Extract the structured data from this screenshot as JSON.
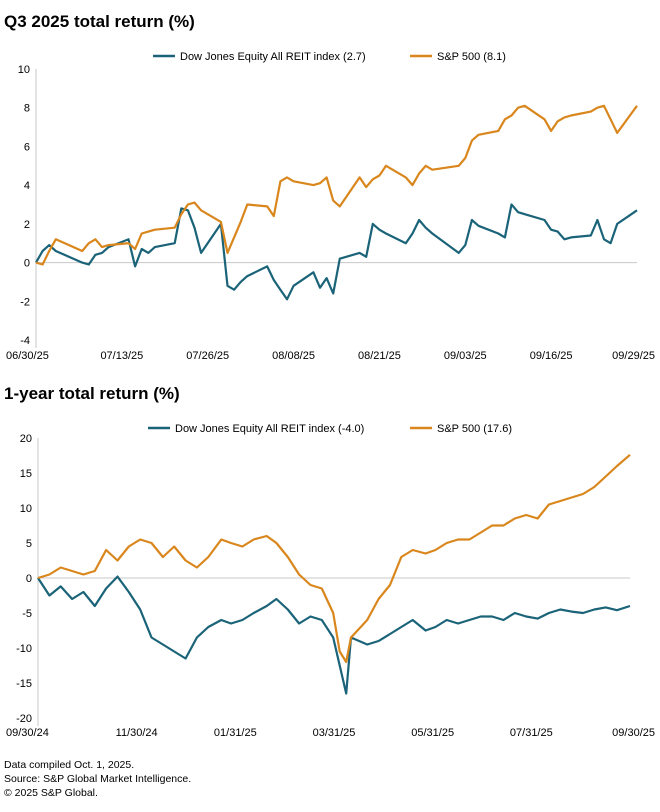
{
  "colors": {
    "reit": "#1a6378",
    "sp500": "#d9861c",
    "axis": "#c8c8c8"
  },
  "footer": [
    "Data compiled Oct. 1, 2025.",
    "Source: S&P Global Market Intelligence.",
    "© 2025 S&P Global."
  ],
  "chart_data": [
    {
      "type": "line",
      "title": "Q3 2025 total return (%)",
      "xlabel": "",
      "ylabel": "",
      "ylim": [
        -4,
        10
      ],
      "yticks": [
        -4,
        -2,
        0,
        2,
        4,
        6,
        8,
        10
      ],
      "x_start": "06/30/25",
      "x_end": "09/29/25",
      "xtick_labels": [
        "06/30/25",
        "07/13/25",
        "07/26/25",
        "08/08/25",
        "08/21/25",
        "09/03/25",
        "09/16/25",
        "09/29/25"
      ],
      "legend_position": "top",
      "series": [
        {
          "name": "Dow Jones Equity All REIT index (2.7)",
          "color_key": "reit",
          "x": [
            "06/30/25",
            "07/01/25",
            "07/02/25",
            "07/03/25",
            "07/07/25",
            "07/08/25",
            "07/09/25",
            "07/10/25",
            "07/11/25",
            "07/14/25",
            "07/15/25",
            "07/16/25",
            "07/17/25",
            "07/18/25",
            "07/21/25",
            "07/22/25",
            "07/23/25",
            "07/24/25",
            "07/25/25",
            "07/28/25",
            "07/29/25",
            "07/30/25",
            "07/31/25",
            "08/01/25",
            "08/04/25",
            "08/05/25",
            "08/06/25",
            "08/07/25",
            "08/08/25",
            "08/11/25",
            "08/12/25",
            "08/13/25",
            "08/14/25",
            "08/15/25",
            "08/18/25",
            "08/19/25",
            "08/20/25",
            "08/21/25",
            "08/22/25",
            "08/25/25",
            "08/26/25",
            "08/27/25",
            "08/28/25",
            "08/29/25",
            "09/02/25",
            "09/03/25",
            "09/04/25",
            "09/05/25",
            "09/08/25",
            "09/09/25",
            "09/10/25",
            "09/11/25",
            "09/12/25",
            "09/15/25",
            "09/16/25",
            "09/17/25",
            "09/18/25",
            "09/19/25",
            "09/22/25",
            "09/23/25",
            "09/24/25",
            "09/25/25",
            "09/26/25",
            "09/29/25"
          ],
          "values": [
            0.0,
            0.6,
            0.9,
            0.6,
            0.0,
            -0.1,
            0.4,
            0.5,
            0.8,
            1.2,
            -0.2,
            0.7,
            0.5,
            0.8,
            1.0,
            2.8,
            2.7,
            1.8,
            0.5,
            2.0,
            -1.2,
            -1.4,
            -1.0,
            -0.7,
            -0.2,
            -0.9,
            -1.4,
            -1.9,
            -1.2,
            -0.5,
            -1.3,
            -0.8,
            -1.6,
            0.2,
            0.5,
            0.3,
            2.0,
            1.7,
            1.5,
            1.0,
            1.5,
            2.2,
            1.8,
            1.5,
            0.5,
            0.9,
            2.2,
            1.9,
            1.5,
            1.3,
            3.0,
            2.6,
            2.5,
            2.2,
            1.7,
            1.6,
            1.2,
            1.3,
            1.4,
            2.2,
            1.2,
            1.0,
            2.0,
            2.7
          ]
        },
        {
          "name": "S&P 500 (8.1)",
          "color_key": "sp500",
          "x": [
            "06/30/25",
            "07/01/25",
            "07/02/25",
            "07/03/25",
            "07/07/25",
            "07/08/25",
            "07/09/25",
            "07/10/25",
            "07/11/25",
            "07/14/25",
            "07/15/25",
            "07/16/25",
            "07/17/25",
            "07/18/25",
            "07/21/25",
            "07/22/25",
            "07/23/25",
            "07/24/25",
            "07/25/25",
            "07/28/25",
            "07/29/25",
            "07/30/25",
            "07/31/25",
            "08/01/25",
            "08/04/25",
            "08/05/25",
            "08/06/25",
            "08/07/25",
            "08/08/25",
            "08/11/25",
            "08/12/25",
            "08/13/25",
            "08/14/25",
            "08/15/25",
            "08/18/25",
            "08/19/25",
            "08/20/25",
            "08/21/25",
            "08/22/25",
            "08/25/25",
            "08/26/25",
            "08/27/25",
            "08/28/25",
            "08/29/25",
            "09/02/25",
            "09/03/25",
            "09/04/25",
            "09/05/25",
            "09/08/25",
            "09/09/25",
            "09/10/25",
            "09/11/25",
            "09/12/25",
            "09/15/25",
            "09/16/25",
            "09/17/25",
            "09/18/25",
            "09/19/25",
            "09/22/25",
            "09/23/25",
            "09/24/25",
            "09/25/25",
            "09/26/25",
            "09/29/25"
          ],
          "values": [
            0.0,
            -0.1,
            0.6,
            1.2,
            0.6,
            1.0,
            1.2,
            0.8,
            0.9,
            1.0,
            0.7,
            1.5,
            1.6,
            1.7,
            1.8,
            2.5,
            3.0,
            3.1,
            2.7,
            2.1,
            0.5,
            1.3,
            2.1,
            3.0,
            2.9,
            2.4,
            4.2,
            4.4,
            4.2,
            4.0,
            4.1,
            4.4,
            3.2,
            2.9,
            4.4,
            3.9,
            4.3,
            4.5,
            5.0,
            4.4,
            4.0,
            4.6,
            5.0,
            4.8,
            5.0,
            5.4,
            6.3,
            6.6,
            6.8,
            7.4,
            7.6,
            8.0,
            8.1,
            7.4,
            6.8,
            7.3,
            7.5,
            7.6,
            7.8,
            8.0,
            8.1,
            7.4,
            6.7,
            8.1
          ]
        }
      ]
    },
    {
      "type": "line",
      "title": "1-year total return (%)",
      "xlabel": "",
      "ylabel": "",
      "ylim": [
        -20,
        20
      ],
      "yticks": [
        -20,
        -15,
        -10,
        -5,
        0,
        5,
        10,
        15,
        20
      ],
      "x_start": "09/30/24",
      "x_end": "09/30/25",
      "xtick_labels": [
        "09/30/24",
        "11/30/24",
        "01/31/25",
        "03/31/25",
        "05/31/25",
        "07/31/25",
        "09/30/25"
      ],
      "legend_position": "top",
      "series": [
        {
          "name": "Dow Jones Equity All REIT index (-4.0)",
          "color_key": "reit",
          "x": [
            "09/30/24",
            "10/07/24",
            "10/14/24",
            "10/21/24",
            "10/28/24",
            "11/04/24",
            "11/11/24",
            "11/18/24",
            "11/25/24",
            "12/02/24",
            "12/09/24",
            "12/16/24",
            "12/23/24",
            "12/30/24",
            "01/06/25",
            "01/13/25",
            "01/21/25",
            "01/27/25",
            "02/03/25",
            "02/10/25",
            "02/18/25",
            "02/24/25",
            "03/03/25",
            "03/10/25",
            "03/17/25",
            "03/24/25",
            "03/31/25",
            "04/04/25",
            "04/08/25",
            "04/11/25",
            "04/21/25",
            "04/28/25",
            "05/05/25",
            "05/12/25",
            "05/19/25",
            "05/27/25",
            "06/02/25",
            "06/09/25",
            "06/16/25",
            "06/23/25",
            "06/30/25",
            "07/07/25",
            "07/14/25",
            "07/21/25",
            "07/28/25",
            "08/04/25",
            "08/11/25",
            "08/18/25",
            "08/25/25",
            "09/01/25",
            "09/08/25",
            "09/15/25",
            "09/22/25",
            "09/30/25"
          ],
          "values": [
            0.0,
            -2.5,
            -1.2,
            -3.0,
            -2.0,
            -4.0,
            -1.5,
            0.2,
            -2.0,
            -4.5,
            -8.5,
            -9.5,
            -10.5,
            -11.5,
            -8.5,
            -7.0,
            -6.0,
            -6.5,
            -6.0,
            -5.0,
            -4.0,
            -3.0,
            -4.5,
            -6.5,
            -5.5,
            -6.0,
            -8.5,
            -12.5,
            -16.5,
            -8.5,
            -9.5,
            -9.0,
            -8.0,
            -7.0,
            -6.0,
            -7.5,
            -7.0,
            -6.0,
            -6.5,
            -6.0,
            -5.5,
            -5.5,
            -6.0,
            -5.0,
            -5.5,
            -5.8,
            -5.0,
            -4.5,
            -4.8,
            -5.0,
            -4.5,
            -4.2,
            -4.6,
            -4.0
          ]
        },
        {
          "name": "S&P 500 (17.6)",
          "color_key": "sp500",
          "x": [
            "09/30/24",
            "10/07/24",
            "10/14/24",
            "10/21/24",
            "10/28/24",
            "11/04/24",
            "11/11/24",
            "11/18/24",
            "11/25/24",
            "12/02/24",
            "12/09/24",
            "12/16/24",
            "12/23/24",
            "12/30/24",
            "01/06/25",
            "01/13/25",
            "01/21/25",
            "01/27/25",
            "02/03/25",
            "02/10/25",
            "02/18/25",
            "02/24/25",
            "03/03/25",
            "03/10/25",
            "03/17/25",
            "03/24/25",
            "03/31/25",
            "04/04/25",
            "04/08/25",
            "04/11/25",
            "04/21/25",
            "04/28/25",
            "05/05/25",
            "05/12/25",
            "05/19/25",
            "05/27/25",
            "06/02/25",
            "06/09/25",
            "06/16/25",
            "06/23/25",
            "06/30/25",
            "07/07/25",
            "07/14/25",
            "07/21/25",
            "07/28/25",
            "08/04/25",
            "08/11/25",
            "08/18/25",
            "08/25/25",
            "09/01/25",
            "09/08/25",
            "09/15/25",
            "09/22/25",
            "09/30/25"
          ],
          "values": [
            0.0,
            0.5,
            1.5,
            1.0,
            0.5,
            1.0,
            4.0,
            2.5,
            4.5,
            5.5,
            5.0,
            3.0,
            4.5,
            2.5,
            1.5,
            3.0,
            5.5,
            5.0,
            4.5,
            5.5,
            6.0,
            5.0,
            3.0,
            0.5,
            -1.0,
            -1.5,
            -5.0,
            -10.5,
            -12.0,
            -8.5,
            -6.0,
            -3.0,
            -1.0,
            3.0,
            4.0,
            3.5,
            4.0,
            5.0,
            5.5,
            5.5,
            6.5,
            7.5,
            7.5,
            8.5,
            9.0,
            8.5,
            10.5,
            11.0,
            11.5,
            12.0,
            13.0,
            14.5,
            16.0,
            17.6
          ]
        }
      ]
    }
  ]
}
